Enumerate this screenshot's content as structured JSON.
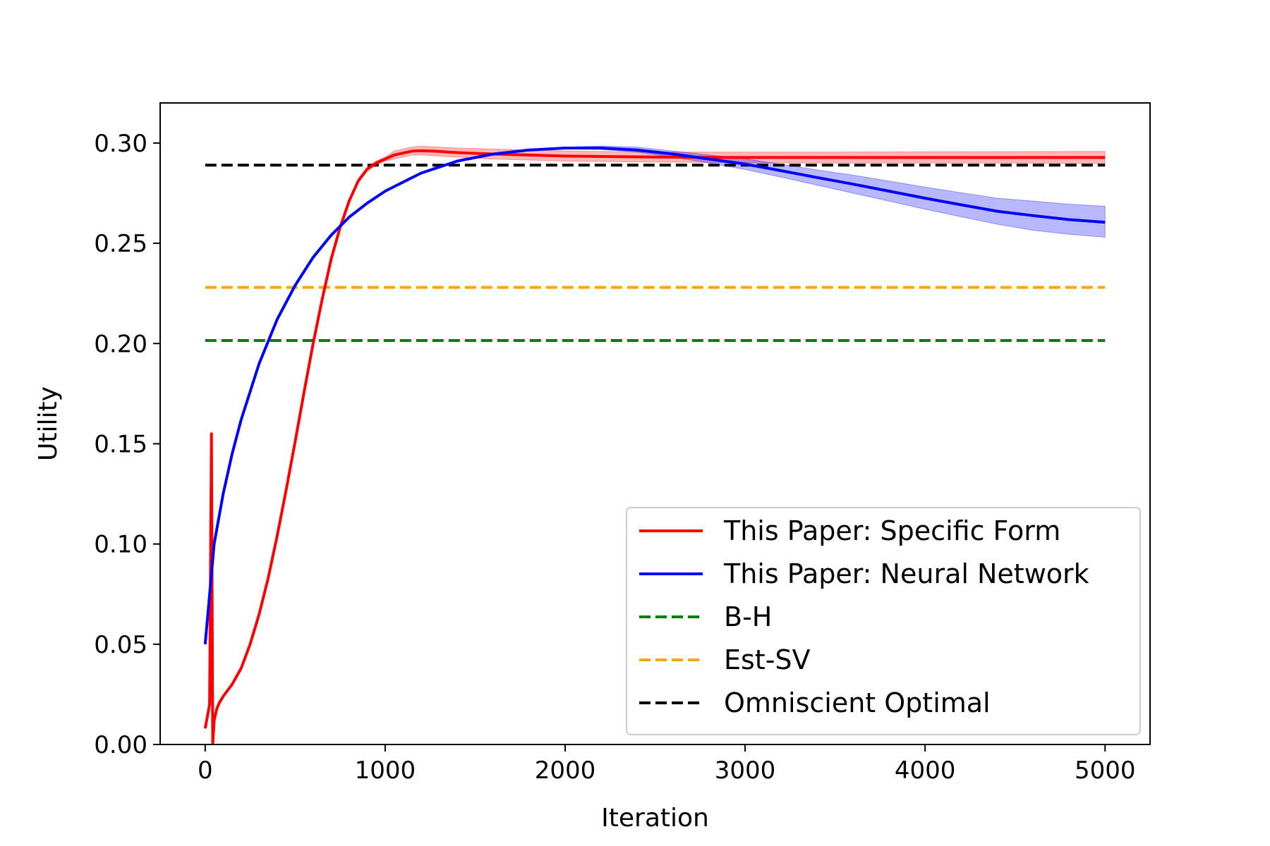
{
  "chart_data": {
    "type": "line",
    "xlabel": "Iteration",
    "ylabel": "Utility",
    "xlim": [
      -250,
      5250
    ],
    "ylim": [
      0.0,
      0.32
    ],
    "xticks": [
      0,
      1000,
      2000,
      3000,
      4000,
      5000
    ],
    "xtick_labels": [
      "0",
      "1000",
      "2000",
      "3000",
      "4000",
      "5000"
    ],
    "yticks": [
      0.0,
      0.05,
      0.1,
      0.15,
      0.2,
      0.25,
      0.3
    ],
    "ytick_labels": [
      "0.00",
      "0.05",
      "0.10",
      "0.15",
      "0.20",
      "0.25",
      "0.30"
    ],
    "grid": false,
    "legend_position": "lower-right",
    "series": [
      {
        "name": "This Paper: Specific Form",
        "color": "#ff0000",
        "style": "solid",
        "x": [
          0,
          25,
          35,
          42,
          50,
          65,
          80,
          100,
          150,
          200,
          250,
          300,
          350,
          400,
          450,
          500,
          550,
          600,
          650,
          700,
          750,
          800,
          850,
          900,
          950,
          1000,
          1050,
          1100,
          1150,
          1200,
          1300,
          1400,
          1600,
          1800,
          2000,
          2500,
          3000,
          3500,
          4000,
          4500,
          5000
        ],
        "y": [
          0.008,
          0.02,
          0.155,
          0.0,
          0.012,
          0.018,
          0.021,
          0.024,
          0.03,
          0.038,
          0.05,
          0.065,
          0.083,
          0.104,
          0.127,
          0.151,
          0.176,
          0.2,
          0.222,
          0.242,
          0.258,
          0.271,
          0.281,
          0.287,
          0.29,
          0.292,
          0.294,
          0.295,
          0.296,
          0.2962,
          0.2958,
          0.2952,
          0.2945,
          0.294,
          0.2935,
          0.293,
          0.2928,
          0.2928,
          0.2928,
          0.2928,
          0.2928
        ],
        "band_lower": [
          0.008,
          0.02,
          0.155,
          0.0,
          0.012,
          0.018,
          0.021,
          0.024,
          0.03,
          0.038,
          0.05,
          0.065,
          0.083,
          0.104,
          0.127,
          0.151,
          0.176,
          0.2,
          0.222,
          0.241,
          0.257,
          0.27,
          0.28,
          0.286,
          0.289,
          0.291,
          0.292,
          0.293,
          0.294,
          0.294,
          0.2935,
          0.293,
          0.292,
          0.2915,
          0.291,
          0.2905,
          0.2902,
          0.29,
          0.29,
          0.29,
          0.2898
        ],
        "band_upper": [
          0.008,
          0.02,
          0.155,
          0.0,
          0.012,
          0.018,
          0.021,
          0.024,
          0.03,
          0.038,
          0.05,
          0.065,
          0.083,
          0.104,
          0.127,
          0.151,
          0.176,
          0.2,
          0.222,
          0.243,
          0.259,
          0.272,
          0.282,
          0.288,
          0.291,
          0.293,
          0.296,
          0.297,
          0.298,
          0.2984,
          0.298,
          0.2975,
          0.297,
          0.2965,
          0.296,
          0.2955,
          0.2955,
          0.2955,
          0.2956,
          0.2957,
          0.2958
        ]
      },
      {
        "name": "This Paper: Neural Network",
        "color": "#0000ff",
        "style": "solid",
        "x": [
          0,
          50,
          100,
          150,
          200,
          300,
          400,
          500,
          600,
          700,
          800,
          900,
          1000,
          1200,
          1400,
          1600,
          1800,
          2000,
          2200,
          2400,
          2600,
          2800,
          3000,
          3200,
          3400,
          3600,
          3800,
          4000,
          4200,
          4400,
          4600,
          4800,
          5000
        ],
        "y": [
          0.05,
          0.1,
          0.125,
          0.145,
          0.162,
          0.19,
          0.212,
          0.229,
          0.243,
          0.254,
          0.263,
          0.27,
          0.276,
          0.285,
          0.291,
          0.2945,
          0.2965,
          0.2975,
          0.2975,
          0.2965,
          0.2945,
          0.292,
          0.2895,
          0.2862,
          0.2828,
          0.2795,
          0.276,
          0.2725,
          0.2692,
          0.266,
          0.2638,
          0.2618,
          0.2605
        ],
        "band_lower": [
          0.05,
          0.1,
          0.125,
          0.145,
          0.162,
          0.19,
          0.212,
          0.229,
          0.243,
          0.254,
          0.263,
          0.27,
          0.276,
          0.285,
          0.291,
          0.2943,
          0.2962,
          0.297,
          0.2968,
          0.2955,
          0.293,
          0.29,
          0.2868,
          0.283,
          0.279,
          0.275,
          0.271,
          0.267,
          0.2632,
          0.2595,
          0.2565,
          0.2545,
          0.253
        ],
        "band_upper": [
          0.05,
          0.1,
          0.125,
          0.145,
          0.162,
          0.19,
          0.212,
          0.229,
          0.243,
          0.254,
          0.263,
          0.27,
          0.276,
          0.285,
          0.291,
          0.2948,
          0.2968,
          0.298,
          0.2985,
          0.298,
          0.296,
          0.294,
          0.2922,
          0.2894,
          0.2866,
          0.284,
          0.281,
          0.278,
          0.2752,
          0.2725,
          0.271,
          0.2695,
          0.2685
        ]
      },
      {
        "name": "B-H",
        "color": "#008000",
        "style": "dashed",
        "x": [
          0,
          5000
        ],
        "y": [
          0.2015,
          0.2015
        ]
      },
      {
        "name": "Est-SV",
        "color": "#ffa500",
        "style": "dashed",
        "x": [
          0,
          5000
        ],
        "y": [
          0.228,
          0.228
        ]
      },
      {
        "name": "Omniscient Optimal",
        "color": "#000000",
        "style": "dashed",
        "x": [
          0,
          5000
        ],
        "y": [
          0.289,
          0.289
        ]
      }
    ]
  }
}
